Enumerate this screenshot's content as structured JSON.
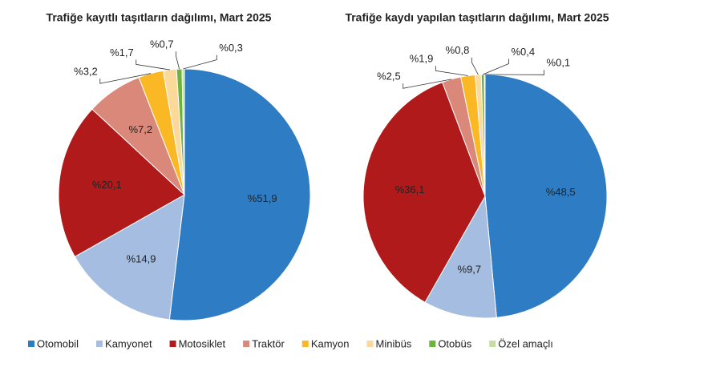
{
  "legend": {
    "categories": [
      "Otomobil",
      "Kamyonet",
      "Motosiklet",
      "Traktör",
      "Kamyon",
      "Minibüs",
      "Otobüs",
      "Özel amaçlı"
    ],
    "colors": [
      "#2e7dc4",
      "#a4bde0",
      "#b01a1a",
      "#d98879",
      "#f9b824",
      "#fbd99b",
      "#6db33f",
      "#c6dca0"
    ]
  },
  "chart_data": [
    {
      "type": "pie",
      "title": "Trafiğe kayıtlı taşıtların dağılımı, Mart 2025",
      "values": [
        51.9,
        14.9,
        20.1,
        7.2,
        3.2,
        1.7,
        0.7,
        0.3
      ],
      "value_labels": [
        "%51,9",
        "%14,9",
        "%20,1",
        "%7,2",
        "%3,2",
        "%1,7",
        "%0,7",
        "%0,3"
      ]
    },
    {
      "type": "pie",
      "title": "Trafiğe kaydı yapılan taşıtların dağılımı, Mart 2025",
      "values": [
        48.5,
        9.7,
        36.1,
        2.5,
        1.9,
        0.8,
        0.4,
        0.1
      ],
      "value_labels": [
        "%48,5",
        "%9,7",
        "%36,1",
        "%2,5",
        "%1,9",
        "%0,8",
        "%0,4",
        "%0,1"
      ]
    }
  ]
}
